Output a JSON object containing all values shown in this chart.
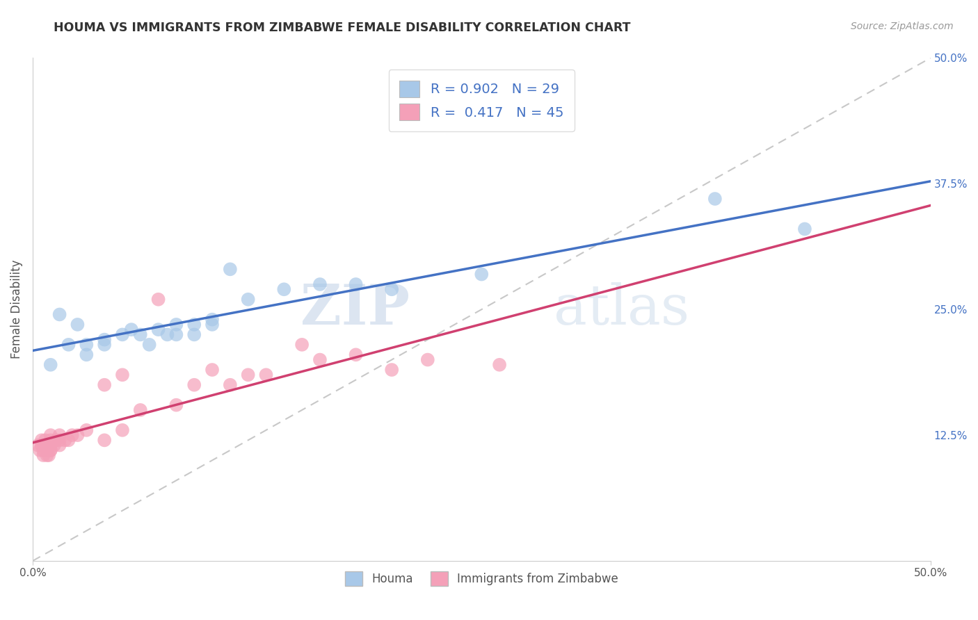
{
  "title": "HOUMA VS IMMIGRANTS FROM ZIMBABWE FEMALE DISABILITY CORRELATION CHART",
  "source": "Source: ZipAtlas.com",
  "ylabel": "Female Disability",
  "x_min": 0.0,
  "x_max": 0.5,
  "y_min": 0.0,
  "y_max": 0.5,
  "x_ticks": [
    0.0,
    0.5
  ],
  "x_tick_labels": [
    "0.0%",
    "50.0%"
  ],
  "y_ticks": [
    0.125,
    0.25,
    0.375,
    0.5
  ],
  "y_tick_labels": [
    "12.5%",
    "25.0%",
    "37.5%",
    "50.0%"
  ],
  "houma_R": 0.902,
  "houma_N": 29,
  "zimbabwe_R": 0.417,
  "zimbabwe_N": 45,
  "houma_color": "#a8c8e8",
  "zimbabwe_color": "#f4a0b8",
  "houma_line_color": "#4472c4",
  "zimbabwe_line_color": "#d04070",
  "ref_line_color": "#c8c8c8",
  "background_color": "#ffffff",
  "grid_color": "#d8d8d8",
  "houma_scatter_x": [
    0.01,
    0.015,
    0.02,
    0.025,
    0.03,
    0.03,
    0.04,
    0.04,
    0.05,
    0.055,
    0.06,
    0.065,
    0.07,
    0.075,
    0.08,
    0.08,
    0.09,
    0.09,
    0.1,
    0.1,
    0.11,
    0.12,
    0.14,
    0.16,
    0.18,
    0.2,
    0.25,
    0.38,
    0.43
  ],
  "houma_scatter_y": [
    0.195,
    0.245,
    0.215,
    0.235,
    0.205,
    0.215,
    0.22,
    0.215,
    0.225,
    0.23,
    0.225,
    0.215,
    0.23,
    0.225,
    0.225,
    0.235,
    0.235,
    0.225,
    0.24,
    0.235,
    0.29,
    0.26,
    0.27,
    0.275,
    0.275,
    0.27,
    0.285,
    0.36,
    0.33
  ],
  "zimbabwe_scatter_x": [
    0.003,
    0.004,
    0.005,
    0.005,
    0.006,
    0.006,
    0.007,
    0.007,
    0.008,
    0.008,
    0.009,
    0.009,
    0.01,
    0.01,
    0.01,
    0.01,
    0.01,
    0.012,
    0.013,
    0.015,
    0.015,
    0.015,
    0.018,
    0.02,
    0.022,
    0.025,
    0.03,
    0.04,
    0.04,
    0.05,
    0.05,
    0.06,
    0.07,
    0.08,
    0.09,
    0.1,
    0.11,
    0.12,
    0.13,
    0.15,
    0.16,
    0.18,
    0.2,
    0.22,
    0.26
  ],
  "zimbabwe_scatter_y": [
    0.115,
    0.11,
    0.115,
    0.12,
    0.105,
    0.11,
    0.115,
    0.12,
    0.105,
    0.11,
    0.105,
    0.115,
    0.11,
    0.11,
    0.115,
    0.12,
    0.125,
    0.115,
    0.12,
    0.12,
    0.115,
    0.125,
    0.12,
    0.12,
    0.125,
    0.125,
    0.13,
    0.175,
    0.12,
    0.185,
    0.13,
    0.15,
    0.26,
    0.155,
    0.175,
    0.19,
    0.175,
    0.185,
    0.185,
    0.215,
    0.2,
    0.205,
    0.19,
    0.2,
    0.195
  ],
  "watermark_zip": "ZIP",
  "watermark_atlas": "atlas",
  "bottom_legend": [
    "Houma",
    "Immigrants from Zimbabwe"
  ]
}
